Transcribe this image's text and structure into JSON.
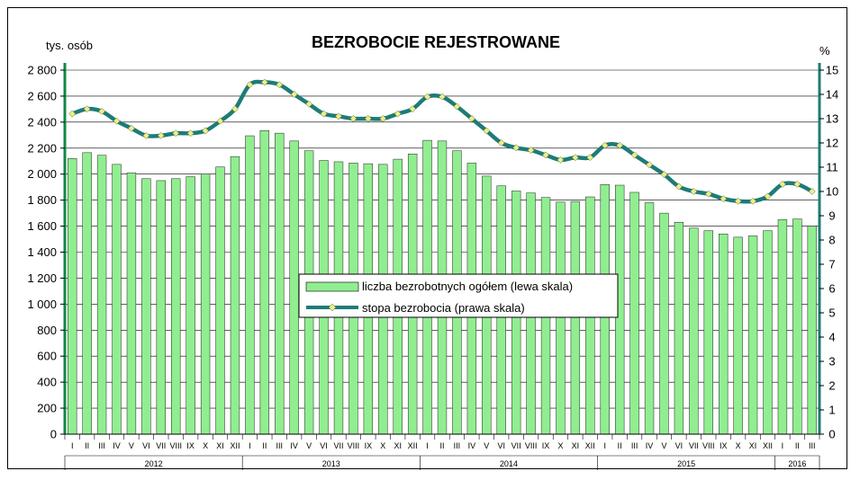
{
  "chart_data": {
    "type": "bar",
    "title": "BEZROBOCIE REJESTROWANE",
    "ylabel_left": "tys. osób",
    "ylabel_right": "%",
    "ylim_left": [
      0,
      2800
    ],
    "ylim_right": [
      0,
      15
    ],
    "y_ticks_left": [
      "0",
      "200",
      "400",
      "600",
      "800",
      "1 000",
      "1 200",
      "1 400",
      "1 600",
      "1 800",
      "2 000",
      "2 200",
      "2 400",
      "2 600",
      "2 800"
    ],
    "y_ticks_right": [
      "0",
      "1",
      "2",
      "3",
      "4",
      "5",
      "6",
      "7",
      "8",
      "9",
      "10",
      "11",
      "12",
      "13",
      "14",
      "15"
    ],
    "months": [
      "I",
      "II",
      "III",
      "IV",
      "V",
      "VI",
      "VII",
      "VIII",
      "IX",
      "X",
      "XI",
      "XII",
      "I",
      "II",
      "III",
      "IV",
      "V",
      "VI",
      "VII",
      "VIII",
      "IX",
      "X",
      "XI",
      "XII",
      "I",
      "II",
      "III",
      "IV",
      "V",
      "VI",
      "VII",
      "VIII",
      "IX",
      "X",
      "XI",
      "XII",
      "I",
      "II",
      "III",
      "IV",
      "V",
      "VI",
      "VII",
      "VIII",
      "IX",
      "X",
      "XI",
      "XII",
      "I",
      "II",
      "III"
    ],
    "years": [
      {
        "label": "2012",
        "count": 12
      },
      {
        "label": "2013",
        "count": 12
      },
      {
        "label": "2014",
        "count": 12
      },
      {
        "label": "2015",
        "count": 12
      },
      {
        "label": "2016",
        "count": 3
      }
    ],
    "series": [
      {
        "name": "liczba bezrobotnych ogółem (lewa skala)",
        "kind": "bar",
        "axis": "left",
        "color": "#90EE90",
        "values": [
          2120,
          2165,
          2145,
          2075,
          2010,
          1965,
          1950,
          1965,
          1980,
          2000,
          2055,
          2135,
          2295,
          2335,
          2315,
          2255,
          2180,
          2105,
          2095,
          2085,
          2080,
          2075,
          2115,
          2155,
          2260,
          2255,
          2180,
          2085,
          1985,
          1910,
          1870,
          1855,
          1820,
          1785,
          1790,
          1825,
          1920,
          1915,
          1860,
          1780,
          1700,
          1630,
          1585,
          1565,
          1540,
          1515,
          1525,
          1565,
          1650,
          1655,
          1600
        ]
      },
      {
        "name": "stopa bezrobocia (prawa skala)",
        "kind": "line",
        "axis": "right",
        "color": "#1E7B78",
        "marker_color": "#EEEE88",
        "values": [
          13.2,
          13.4,
          13.3,
          12.9,
          12.6,
          12.3,
          12.3,
          12.4,
          12.4,
          12.5,
          12.9,
          13.4,
          14.4,
          14.5,
          14.4,
          14.0,
          13.6,
          13.2,
          13.1,
          13.0,
          13.0,
          13.0,
          13.2,
          13.4,
          13.9,
          13.9,
          13.5,
          13.0,
          12.5,
          12.0,
          11.8,
          11.7,
          11.5,
          11.3,
          11.4,
          11.4,
          11.9,
          11.9,
          11.5,
          11.1,
          10.7,
          10.2,
          10.0,
          9.9,
          9.7,
          9.6,
          9.6,
          9.8,
          10.3,
          10.3,
          10.0
        ]
      }
    ],
    "legend_position": "center",
    "grid": true
  }
}
